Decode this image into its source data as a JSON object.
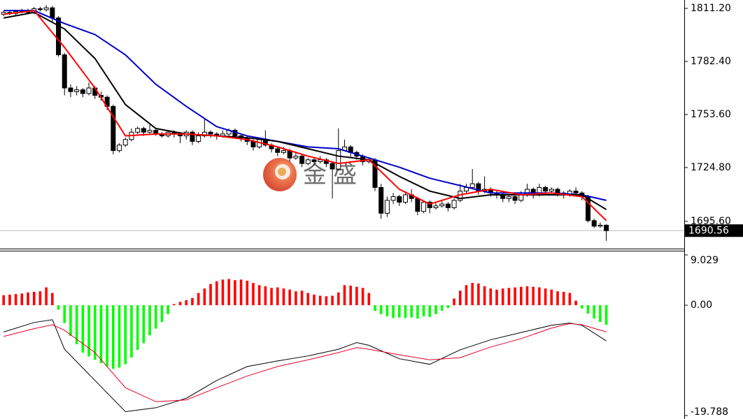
{
  "chart_data": [
    {
      "type": "candlestick",
      "xlim": [
        -0.6,
        111.8
      ],
      "ylim": [
        1680.8,
        1815.75
      ],
      "yticks": [
        {
          "value": 1811.2,
          "label": "1811.20"
        },
        {
          "value": 1782.4,
          "label": "1782.40"
        },
        {
          "value": 1753.6,
          "label": "1753.60"
        },
        {
          "value": 1724.8,
          "label": "1724.80"
        },
        {
          "value": 1695.6,
          "label": "1695.60"
        }
      ],
      "last_price": 1690.56,
      "up_color": "#ffffff",
      "down_color": "#000000",
      "candles": {
        "open": [
          1808,
          1809,
          1808.5,
          1809.5,
          1810,
          1809,
          1811,
          1810.5,
          1811.5,
          1806,
          1786,
          1768,
          1766,
          1767,
          1765,
          1768,
          1764,
          1763,
          1758,
          1734,
          1737,
          1740,
          1744,
          1746,
          1744,
          1745,
          1743,
          1742,
          1744,
          1743,
          1742,
          1744,
          1739,
          1742,
          1744,
          1743,
          1742,
          1743,
          1745,
          1742,
          1741,
          1739,
          1736,
          1740,
          1737,
          1735,
          1733,
          1734,
          1730,
          1731,
          1727,
          1729,
          1728,
          1729,
          1727,
          1724,
          1734,
          1736,
          1733,
          1731,
          1728,
          1729,
          1714,
          1700,
          1707,
          1709,
          1706,
          1710,
          1708,
          1701,
          1706,
          1703,
          1704,
          1705,
          1703,
          1707,
          1712,
          1714,
          1716,
          1712,
          1713,
          1711,
          1710,
          1708,
          1709,
          1707,
          1710,
          1713,
          1710,
          1714,
          1712,
          1713,
          1711,
          1710,
          1712,
          1711,
          1709,
          1696,
          1693,
          1693.5
        ],
        "high": [
          1810,
          1810,
          1810.5,
          1811,
          1811,
          1812,
          1812,
          1813,
          1812.5,
          1807,
          1787,
          1770,
          1769,
          1768,
          1771,
          1769,
          1766,
          1764,
          1759,
          1738,
          1741,
          1746,
          1747,
          1747,
          1748,
          1746,
          1744,
          1745,
          1745,
          1744,
          1745,
          1745,
          1744,
          1751,
          1745,
          1744,
          1745,
          1746,
          1746,
          1743,
          1742,
          1740,
          1741,
          1745,
          1738,
          1736,
          1736,
          1735,
          1733,
          1732,
          1730,
          1730,
          1731,
          1730,
          1728,
          1746,
          1740,
          1737,
          1734,
          1732,
          1730,
          1730,
          1716,
          1709,
          1711,
          1710,
          1712,
          1713,
          1709,
          1707,
          1707,
          1706,
          1707,
          1706,
          1708,
          1716,
          1716,
          1724,
          1717,
          1720,
          1714,
          1712,
          1711,
          1710,
          1710,
          1712,
          1716,
          1714,
          1716,
          1715,
          1714,
          1714,
          1712,
          1713,
          1714,
          1712,
          1710,
          1697,
          1695,
          1694
        ],
        "low": [
          1807,
          1807.5,
          1807.5,
          1808.5,
          1808,
          1808,
          1809.5,
          1809.5,
          1804,
          1785,
          1764,
          1763,
          1764,
          1763,
          1764,
          1762,
          1761,
          1756,
          1732,
          1733,
          1736,
          1739,
          1743,
          1742,
          1743,
          1742,
          1741,
          1741,
          1741,
          1738,
          1740,
          1737,
          1738,
          1741,
          1741,
          1740,
          1741,
          1742,
          1741,
          1739,
          1737,
          1734,
          1735,
          1736,
          1733,
          1731,
          1732,
          1728,
          1729,
          1725,
          1726,
          1726,
          1727,
          1725,
          1708,
          1723,
          1734,
          1730,
          1729,
          1726,
          1727,
          1712,
          1697,
          1698,
          1705,
          1704,
          1705,
          1706,
          1699,
          1700,
          1700,
          1702,
          1703,
          1701,
          1702,
          1706,
          1711,
          1713,
          1710,
          1711,
          1709,
          1708,
          1706,
          1706,
          1705,
          1706,
          1709,
          1708,
          1709,
          1710,
          1711,
          1709,
          1708,
          1709,
          1709,
          1707,
          1695,
          1692,
          1692,
          1685
        ],
        "close": [
          1809,
          1808.5,
          1809.5,
          1810,
          1809,
          1811,
          1810.5,
          1811.5,
          1806,
          1786,
          1768,
          1766,
          1767,
          1765,
          1768,
          1764,
          1763,
          1758,
          1734,
          1737,
          1740,
          1744,
          1746,
          1744,
          1745,
          1743,
          1742,
          1744,
          1743,
          1742,
          1744,
          1739,
          1742,
          1744,
          1743,
          1742,
          1743,
          1745,
          1742,
          1741,
          1739,
          1736,
          1740,
          1737,
          1735,
          1733,
          1734,
          1730,
          1731,
          1727,
          1729,
          1728,
          1729,
          1727,
          1724,
          1734,
          1736,
          1733,
          1731,
          1728,
          1729,
          1714,
          1700,
          1707,
          1709,
          1706,
          1710,
          1708,
          1701,
          1706,
          1703,
          1704,
          1705,
          1703,
          1707,
          1712,
          1714,
          1716,
          1712,
          1713,
          1711,
          1710,
          1708,
          1709,
          1707,
          1710,
          1713,
          1710,
          1714,
          1712,
          1713,
          1711,
          1710,
          1712,
          1711,
          1709,
          1696,
          1693,
          1693.5,
          1690.56
        ]
      },
      "moving_averages": [
        {
          "color": "#0000c8",
          "x": [
            0,
            5,
            10,
            15,
            20,
            25,
            30,
            35,
            40,
            45,
            50,
            55,
            60,
            65,
            70,
            75,
            80,
            85,
            90,
            95,
            99
          ],
          "values": [
            1810,
            1810,
            1803,
            1797,
            1786,
            1770,
            1758,
            1747,
            1742,
            1739,
            1736,
            1735,
            1730,
            1725,
            1719,
            1715,
            1711,
            1711,
            1711,
            1710,
            1707
          ]
        },
        {
          "color": "#000000",
          "x": [
            0,
            5,
            10,
            15,
            20,
            25,
            30,
            35,
            40,
            45,
            50,
            55,
            60,
            65,
            70,
            75,
            80,
            85,
            90,
            95,
            99
          ],
          "values": [
            1806,
            1809,
            1800,
            1784,
            1759,
            1746,
            1743,
            1742,
            1741,
            1739,
            1735,
            1731,
            1729,
            1720,
            1712,
            1708,
            1710,
            1710,
            1710,
            1710,
            1702
          ]
        },
        {
          "color": "#ff0000",
          "x": [
            0,
            5,
            10,
            15,
            20,
            25,
            30,
            35,
            40,
            45,
            50,
            55,
            60,
            65,
            70,
            75,
            80,
            85,
            90,
            95,
            99
          ],
          "values": [
            1808,
            1810,
            1790,
            1768,
            1742,
            1743,
            1743,
            1742,
            1740,
            1736,
            1731,
            1727,
            1729,
            1713,
            1705,
            1710,
            1713,
            1710,
            1711,
            1709,
            1696
          ]
        }
      ],
      "watermark": [
        "金",
        "盛"
      ]
    },
    {
      "type": "macd",
      "xlim": [
        -0.6,
        111.8
      ],
      "ylim": [
        -19.788,
        9.029
      ],
      "yticks": [
        9.029,
        {
          "value": 0,
          "label": "0.00"
        },
        -19.788
      ],
      "histogram": {
        "up_color": "#ff0000",
        "down_color": "#00ff00",
        "values": [
          1.8,
          1.9,
          2.0,
          2.1,
          2.3,
          2.4,
          2.5,
          3.2,
          2.2,
          -0.8,
          -3.2,
          -5.5,
          -7.0,
          -8.5,
          -9.2,
          -9.8,
          -10.4,
          -11.0,
          -11.4,
          -11.2,
          -10.6,
          -9.4,
          -8.0,
          -6.8,
          -5.4,
          -4.2,
          -3.0,
          -1.6,
          0.2,
          0.6,
          0.9,
          1.3,
          2.2,
          3.0,
          3.8,
          4.3,
          4.6,
          4.7,
          4.5,
          4.6,
          4.4,
          4.0,
          3.6,
          3.4,
          3.1,
          3.2,
          3.0,
          2.8,
          2.5,
          2.6,
          2.2,
          1.9,
          1.7,
          1.6,
          1.7,
          2.3,
          3.6,
          3.5,
          3.3,
          3.1,
          2.2,
          -1.0,
          -1.6,
          -2.0,
          -2.3,
          -2.2,
          -2.3,
          -2.2,
          -2.4,
          -2.0,
          -2.1,
          -1.6,
          -1.0,
          -0.5,
          1.2,
          2.6,
          3.6,
          4.0,
          3.9,
          3.4,
          3.0,
          2.8,
          3.0,
          3.1,
          3.2,
          3.3,
          3.4,
          3.3,
          3.2,
          3.0,
          2.8,
          2.5,
          2.4,
          2.2,
          0.8,
          -0.6,
          -1.5,
          -2.4,
          -3.0,
          -3.5
        ]
      },
      "lines": [
        {
          "color": "#000000",
          "x": [
            0,
            5,
            8,
            10,
            15,
            20,
            25,
            30,
            35,
            40,
            45,
            50,
            55,
            58,
            60,
            65,
            70,
            75,
            80,
            85,
            90,
            93,
            95,
            99
          ],
          "values": [
            -4.8,
            -3.1,
            -2.6,
            -7.9,
            -13.5,
            -19.1,
            -18.4,
            -16.7,
            -13.5,
            -11.0,
            -10.0,
            -9.1,
            -7.9,
            -6.7,
            -7.2,
            -9.6,
            -10.6,
            -8.0,
            -6.2,
            -4.9,
            -3.6,
            -3.2,
            -3.6,
            -6.4
          ]
        },
        {
          "color": "#e8002a",
          "x": [
            0,
            5,
            8,
            10,
            15,
            20,
            25,
            30,
            35,
            40,
            45,
            50,
            55,
            58,
            60,
            65,
            70,
            75,
            80,
            85,
            90,
            93,
            95,
            99
          ],
          "values": [
            -5.6,
            -4.2,
            -3.5,
            -4.5,
            -8.5,
            -14.8,
            -17.3,
            -17.0,
            -14.8,
            -12.7,
            -11.0,
            -9.8,
            -8.5,
            -7.6,
            -7.9,
            -8.9,
            -9.8,
            -9.4,
            -7.5,
            -6.0,
            -4.1,
            -3.3,
            -3.5,
            -4.8
          ]
        }
      ]
    }
  ]
}
